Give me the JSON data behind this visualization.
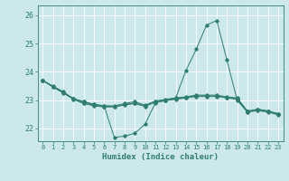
{
  "xlabel": "Humidex (Indice chaleur)",
  "bg_color": "#cce8ec",
  "line_color": "#2e7d6e",
  "grid_color": "#ffffff",
  "xlim": [
    -0.5,
    23.5
  ],
  "ylim": [
    21.55,
    26.35
  ],
  "yticks": [
    22,
    23,
    24,
    25,
    26
  ],
  "xticks": [
    0,
    1,
    2,
    3,
    4,
    5,
    6,
    7,
    8,
    9,
    10,
    11,
    12,
    13,
    14,
    15,
    16,
    17,
    18,
    19,
    20,
    21,
    22,
    23
  ],
  "s1_y": [
    23.7,
    23.5,
    23.3,
    23.05,
    22.95,
    22.85,
    22.8,
    21.68,
    21.73,
    21.83,
    22.15,
    22.9,
    23.0,
    23.08,
    24.05,
    24.8,
    25.65,
    25.82,
    24.42,
    23.0,
    22.58,
    22.68,
    22.62,
    22.52
  ],
  "s2_y": [
    23.7,
    23.48,
    23.28,
    23.05,
    22.95,
    22.85,
    22.8,
    22.8,
    22.88,
    22.95,
    22.82,
    22.97,
    23.03,
    23.08,
    23.12,
    23.18,
    23.18,
    23.18,
    23.12,
    23.08,
    22.62,
    22.68,
    22.62,
    22.52
  ],
  "s3_y": [
    23.7,
    23.48,
    23.28,
    23.05,
    22.9,
    22.82,
    22.78,
    22.78,
    22.85,
    22.9,
    22.8,
    22.95,
    23.0,
    23.05,
    23.1,
    23.15,
    23.15,
    23.15,
    23.1,
    23.05,
    22.6,
    22.65,
    22.6,
    22.5
  ],
  "s4_y": [
    23.7,
    23.46,
    23.26,
    23.03,
    22.88,
    22.8,
    22.76,
    22.76,
    22.83,
    22.88,
    22.78,
    22.93,
    22.98,
    23.03,
    23.08,
    23.13,
    23.13,
    23.13,
    23.08,
    23.03,
    22.58,
    22.63,
    22.58,
    22.48
  ]
}
